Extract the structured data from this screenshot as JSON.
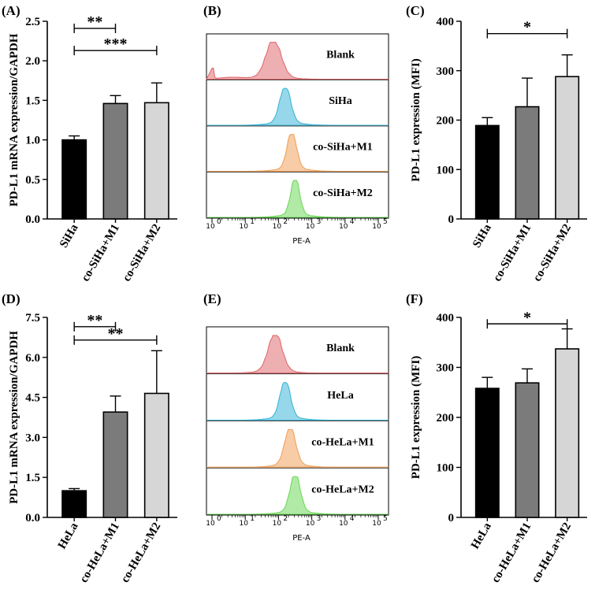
{
  "panel_labels": [
    "(A)",
    "(B)",
    "(C)",
    "(D)",
    "(E)",
    "(F)"
  ],
  "chart_data": [
    {
      "panel": "(A)",
      "type": "bar",
      "ylabel": "PD-L1 mRNA expression/GAPDH",
      "ylim": [
        0,
        2.5
      ],
      "yticks": [
        "0.0",
        "0.5",
        "1.0",
        "1.5",
        "2.0",
        "2.5"
      ],
      "categories": [
        "SiHa",
        "co-SiHa+M1",
        "co-SiHa+M2"
      ],
      "values": [
        1.0,
        1.46,
        1.47
      ],
      "errors": [
        0.05,
        0.1,
        0.25
      ],
      "colors": [
        "#000000",
        "#7b7b7b",
        "#d6d6d6"
      ],
      "significance": [
        {
          "from": 0,
          "to": 1,
          "label": "**",
          "y": 2.41
        },
        {
          "from": 0,
          "to": 2,
          "label": "***",
          "y": 2.13
        }
      ]
    },
    {
      "panel": "(B)",
      "type": "histogram",
      "xlabel": "PE-A",
      "xticks": [
        "10",
        "10",
        "10",
        "10",
        "10",
        "10"
      ],
      "xtick_exponents": [
        "0",
        "1",
        "2",
        "3",
        "4",
        "5"
      ],
      "tracks": [
        {
          "label": "Blank",
          "color": "#e06d72",
          "peak": 1.85,
          "sigma": 0.22,
          "tail": true
        },
        {
          "label": "SiHa",
          "color": "#3fb7d8",
          "peak": 2.2,
          "sigma": 0.16
        },
        {
          "label": "co-SiHa+M1",
          "color": "#f0a25e",
          "peak": 2.4,
          "sigma": 0.14
        },
        {
          "label": "co-SiHa+M2",
          "color": "#70d85c",
          "peak": 2.5,
          "sigma": 0.13
        }
      ]
    },
    {
      "panel": "(C)",
      "type": "bar",
      "ylabel": "PD-L1 expression (MFI)",
      "ylim": [
        0,
        400
      ],
      "yticks": [
        "0",
        "100",
        "200",
        "300",
        "400"
      ],
      "categories": [
        "SiHa",
        "co-SiHa+M1",
        "co-SiHa+M2"
      ],
      "values": [
        189,
        227,
        288
      ],
      "errors": [
        16,
        58,
        44
      ],
      "colors": [
        "#000000",
        "#7b7b7b",
        "#d6d6d6"
      ],
      "significance": [
        {
          "from": 0,
          "to": 2,
          "label": "*",
          "y": 375
        }
      ]
    },
    {
      "panel": "(D)",
      "type": "bar",
      "ylabel": "PD-L1 mRNA expression/GAPDH",
      "ylim": [
        0,
        7.5
      ],
      "yticks": [
        "0.0",
        "1.5",
        "3.0",
        "4.5",
        "6.0",
        "7.5"
      ],
      "categories": [
        "HeLa",
        "co-HeLa+M1",
        "co-HeLa+M2"
      ],
      "values": [
        1.0,
        3.95,
        4.65
      ],
      "errors": [
        0.08,
        0.6,
        1.6
      ],
      "colors": [
        "#000000",
        "#7b7b7b",
        "#d6d6d6"
      ],
      "significance": [
        {
          "from": 0,
          "to": 1,
          "label": "**",
          "y": 7.15
        },
        {
          "from": 0,
          "to": 2,
          "label": "**",
          "y": 6.65
        }
      ]
    },
    {
      "panel": "(E)",
      "type": "histogram",
      "xlabel": "PE-A",
      "xticks": [
        "10",
        "10",
        "10",
        "10",
        "10",
        "10"
      ],
      "xtick_exponents": [
        "0",
        "1",
        "2",
        "3",
        "4",
        "5"
      ],
      "tracks": [
        {
          "label": "Blank",
          "color": "#e06d72",
          "peak": 1.9,
          "sigma": 0.2,
          "tail": false
        },
        {
          "label": "HeLa",
          "color": "#3fb7d8",
          "peak": 2.2,
          "sigma": 0.15
        },
        {
          "label": "co-HeLa+M1",
          "color": "#f0a25e",
          "peak": 2.35,
          "sigma": 0.16
        },
        {
          "label": "co-HeLa+M2",
          "color": "#70d85c",
          "peak": 2.5,
          "sigma": 0.15
        }
      ]
    },
    {
      "panel": "(F)",
      "type": "bar",
      "ylabel": "PD-L1 expression (MFI)",
      "ylim": [
        0,
        400
      ],
      "yticks": [
        "0",
        "100",
        "200",
        "300",
        "400"
      ],
      "categories": [
        "HeLa",
        "co-HeLa+M1",
        "co-HeLa+M2"
      ],
      "values": [
        258,
        269,
        337
      ],
      "errors": [
        22,
        28,
        40
      ],
      "colors": [
        "#000000",
        "#7b7b7b",
        "#d6d6d6"
      ],
      "significance": [
        {
          "from": 0,
          "to": 2,
          "label": "*",
          "y": 387
        }
      ]
    }
  ]
}
